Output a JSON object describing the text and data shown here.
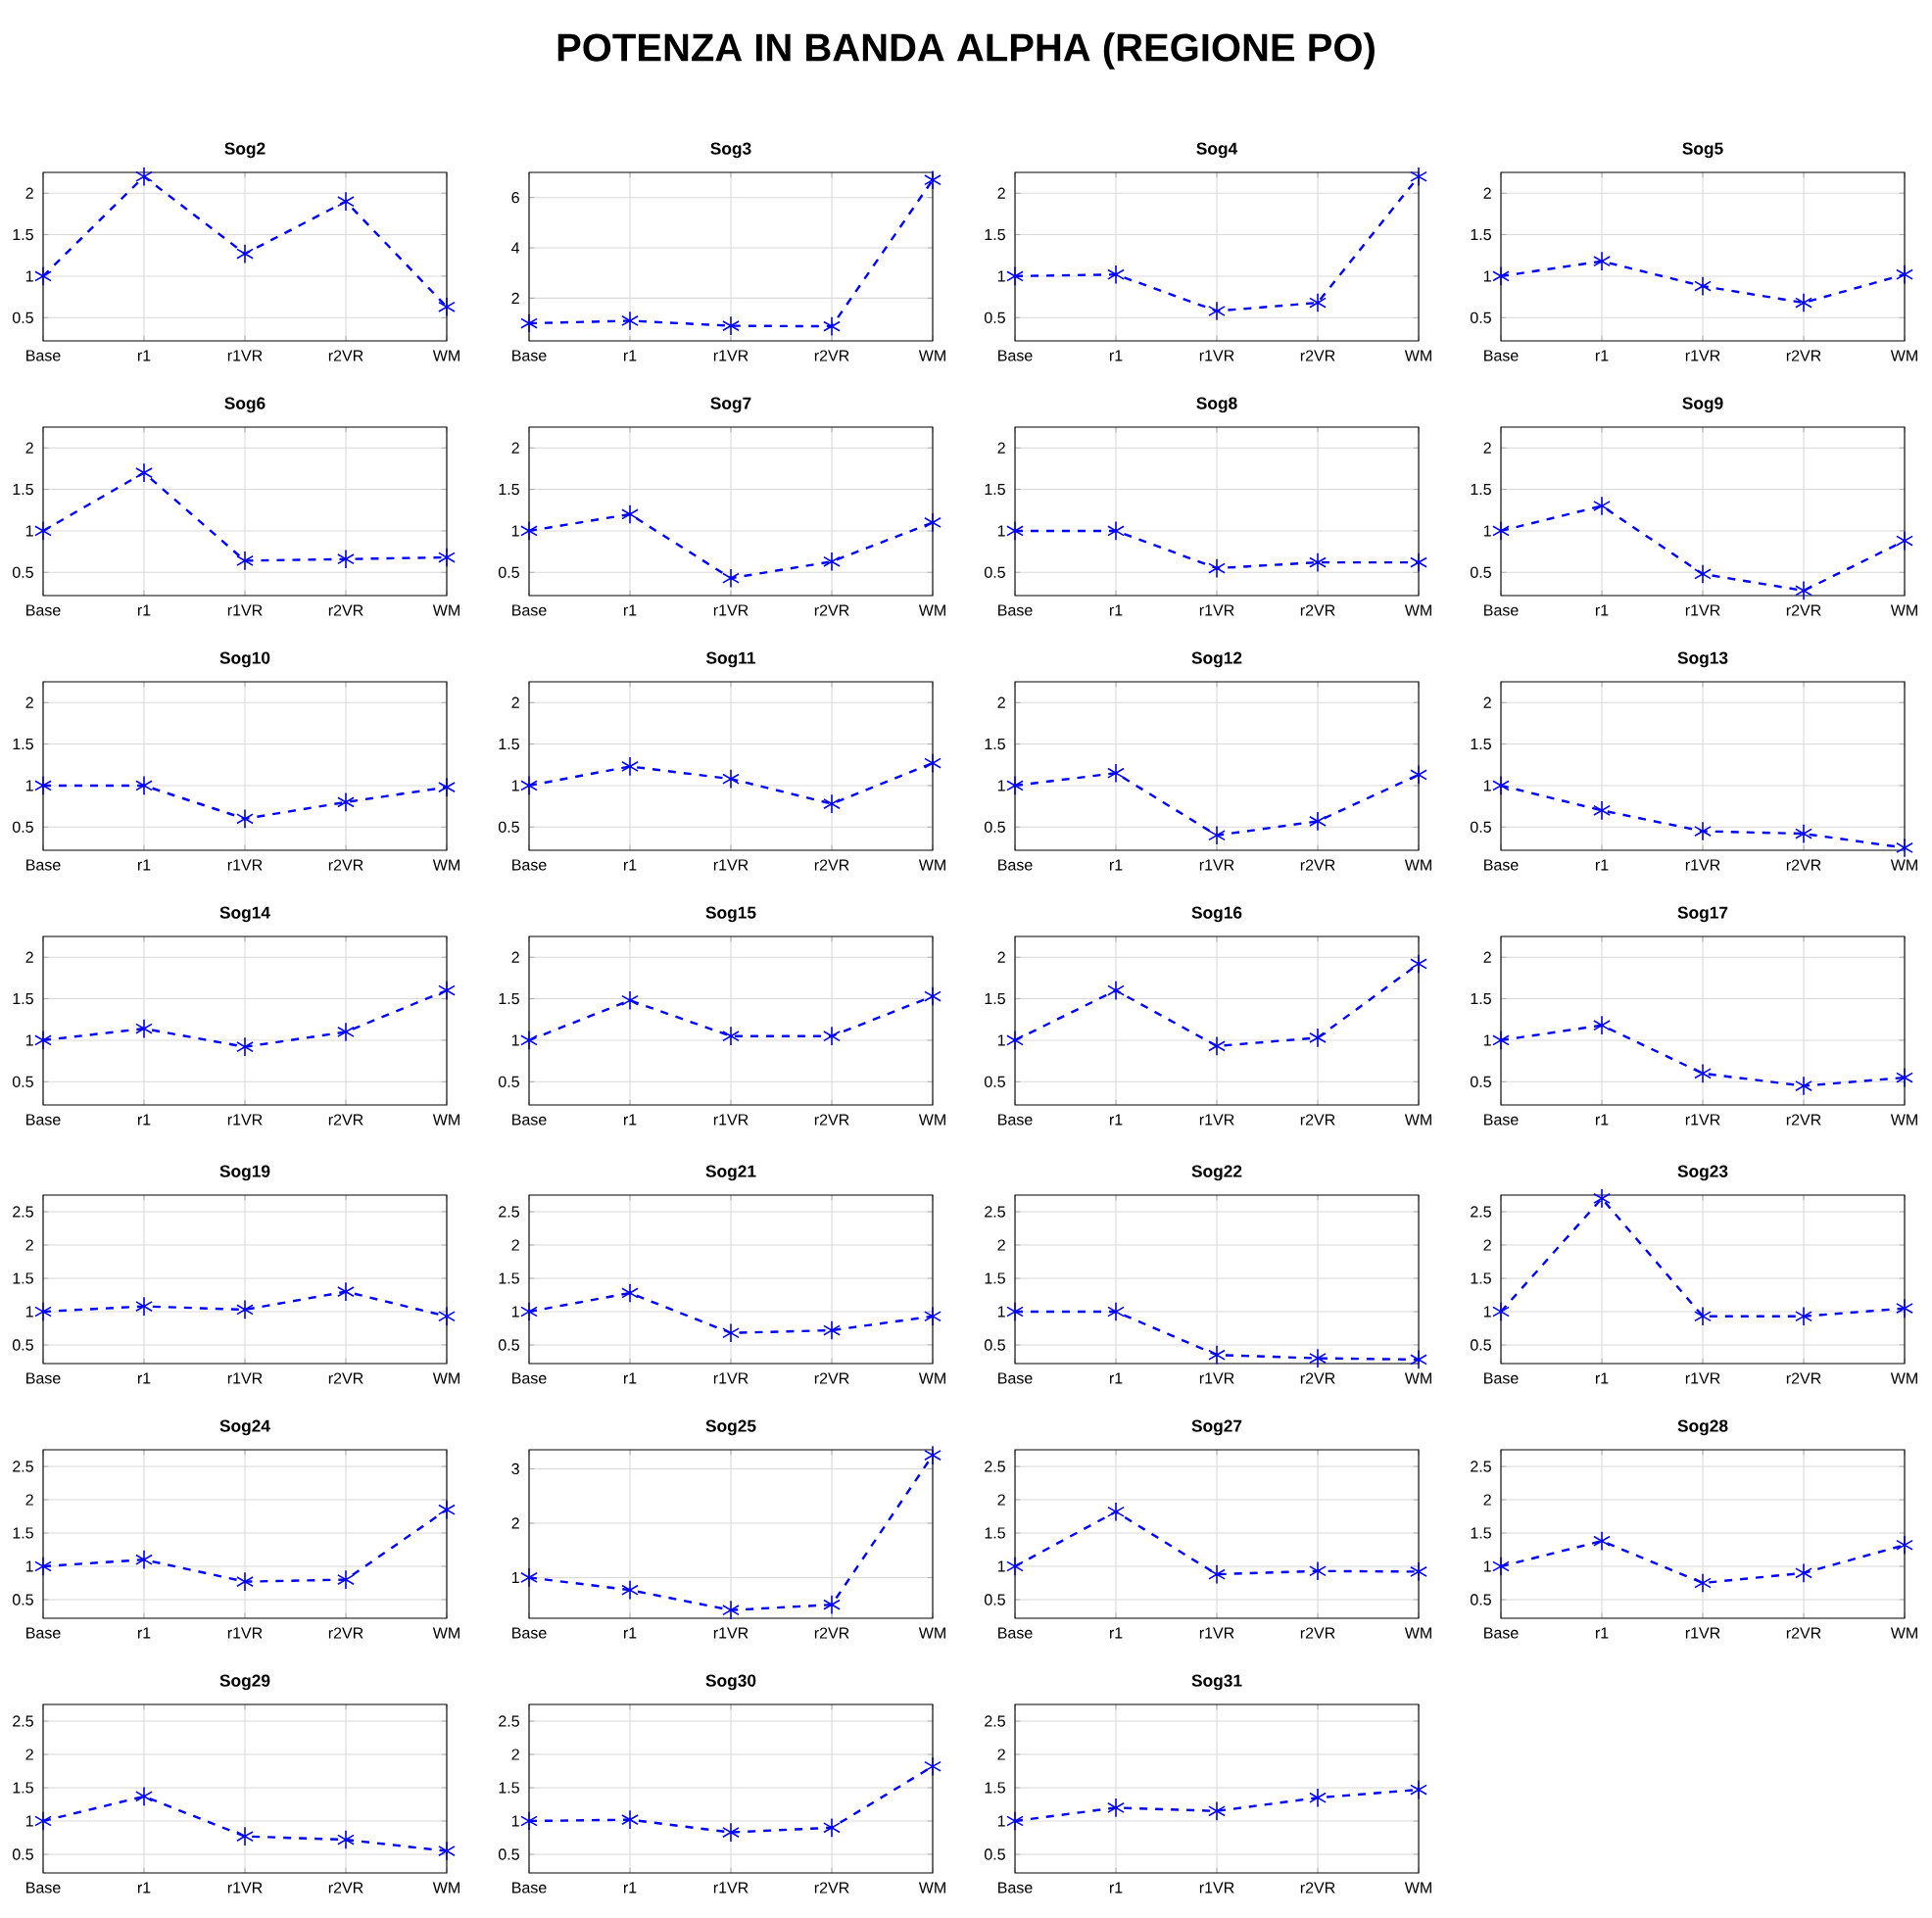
{
  "chart_data": [
    {
      "type": "line",
      "title": "Sog2",
      "annotations": [
        "POTENZA IN BANDA ALPHA (REGIONE PO)"
      ],
      "categories": [
        "Base",
        "r1",
        "r1VR",
        "r2VR",
        "WM"
      ],
      "series": [
        {
          "color": "#0000ff",
          "values": [
            1,
            2.2,
            1.27,
            1.9,
            0.63
          ]
        }
      ],
      "ylim": [
        0.22,
        2.25
      ],
      "yticks": [
        0.5,
        1,
        1.5,
        2
      ],
      "grid": true,
      "marker": "cross",
      "line_style": "dashed"
    },
    {
      "type": "line",
      "title": "Sog3",
      "categories": [
        "Base",
        "r1",
        "r1VR",
        "r2VR",
        "WM"
      ],
      "series": [
        {
          "color": "#0000ff",
          "values": [
            1,
            1.1,
            0.9,
            0.88,
            6.7
          ]
        }
      ],
      "ylim": [
        0.3,
        7
      ],
      "yticks": [
        2,
        4,
        6
      ],
      "grid": true,
      "marker": "cross",
      "line_style": "dashed"
    },
    {
      "type": "line",
      "title": "Sog4",
      "categories": [
        "Base",
        "r1",
        "r1VR",
        "r2VR",
        "WM"
      ],
      "series": [
        {
          "color": "#0000ff",
          "values": [
            1,
            1.02,
            0.58,
            0.68,
            2.2
          ]
        }
      ],
      "ylim": [
        0.22,
        2.25
      ],
      "yticks": [
        0.5,
        1,
        1.5,
        2
      ],
      "grid": true,
      "marker": "cross",
      "line_style": "dashed"
    },
    {
      "type": "line",
      "title": "Sog5",
      "categories": [
        "Base",
        "r1",
        "r1VR",
        "r2VR",
        "WM"
      ],
      "series": [
        {
          "color": "#0000ff",
          "values": [
            1,
            1.18,
            0.88,
            0.68,
            1.02
          ]
        }
      ],
      "ylim": [
        0.22,
        2.25
      ],
      "yticks": [
        0.5,
        1,
        1.5,
        2
      ],
      "grid": true,
      "marker": "cross",
      "line_style": "dashed"
    },
    {
      "type": "line",
      "title": "Sog6",
      "categories": [
        "Base",
        "r1",
        "r1VR",
        "r2VR",
        "WM"
      ],
      "series": [
        {
          "color": "#0000ff",
          "values": [
            1,
            1.7,
            0.64,
            0.66,
            0.68
          ]
        }
      ],
      "ylim": [
        0.22,
        2.25
      ],
      "yticks": [
        0.5,
        1,
        1.5,
        2
      ],
      "grid": true,
      "marker": "cross",
      "line_style": "dashed"
    },
    {
      "type": "line",
      "title": "Sog7",
      "categories": [
        "Base",
        "r1",
        "r1VR",
        "r2VR",
        "WM"
      ],
      "series": [
        {
          "color": "#0000ff",
          "values": [
            1,
            1.2,
            0.43,
            0.63,
            1.1
          ]
        }
      ],
      "ylim": [
        0.22,
        2.25
      ],
      "yticks": [
        0.5,
        1,
        1.5,
        2
      ],
      "grid": true,
      "marker": "cross",
      "line_style": "dashed"
    },
    {
      "type": "line",
      "title": "Sog8",
      "categories": [
        "Base",
        "r1",
        "r1VR",
        "r2VR",
        "WM"
      ],
      "series": [
        {
          "color": "#0000ff",
          "values": [
            1,
            1,
            0.55,
            0.62,
            0.62
          ]
        }
      ],
      "ylim": [
        0.22,
        2.25
      ],
      "yticks": [
        0.5,
        1,
        1.5,
        2
      ],
      "grid": true,
      "marker": "cross",
      "line_style": "dashed"
    },
    {
      "type": "line",
      "title": "Sog9",
      "categories": [
        "Base",
        "r1",
        "r1VR",
        "r2VR",
        "WM"
      ],
      "series": [
        {
          "color": "#0000ff",
          "values": [
            1,
            1.3,
            0.48,
            0.28,
            0.88
          ]
        }
      ],
      "ylim": [
        0.22,
        2.25
      ],
      "yticks": [
        0.5,
        1,
        1.5,
        2
      ],
      "grid": true,
      "marker": "cross",
      "line_style": "dashed"
    },
    {
      "type": "line",
      "title": "Sog10",
      "categories": [
        "Base",
        "r1",
        "r1VR",
        "r2VR",
        "WM"
      ],
      "series": [
        {
          "color": "#0000ff",
          "values": [
            1,
            1,
            0.6,
            0.8,
            0.98
          ]
        }
      ],
      "ylim": [
        0.22,
        2.25
      ],
      "yticks": [
        0.5,
        1,
        1.5,
        2
      ],
      "grid": true,
      "marker": "cross",
      "line_style": "dashed"
    },
    {
      "type": "line",
      "title": "Sog11",
      "categories": [
        "Base",
        "r1",
        "r1VR",
        "r2VR",
        "WM"
      ],
      "series": [
        {
          "color": "#0000ff",
          "values": [
            1,
            1.23,
            1.08,
            0.78,
            1.27
          ]
        }
      ],
      "ylim": [
        0.22,
        2.25
      ],
      "yticks": [
        0.5,
        1,
        1.5,
        2
      ],
      "grid": true,
      "marker": "cross",
      "line_style": "dashed"
    },
    {
      "type": "line",
      "title": "Sog12",
      "categories": [
        "Base",
        "r1",
        "r1VR",
        "r2VR",
        "WM"
      ],
      "series": [
        {
          "color": "#0000ff",
          "values": [
            1,
            1.15,
            0.4,
            0.57,
            1.13
          ]
        }
      ],
      "ylim": [
        0.22,
        2.25
      ],
      "yticks": [
        0.5,
        1,
        1.5,
        2
      ],
      "grid": true,
      "marker": "cross",
      "line_style": "dashed"
    },
    {
      "type": "line",
      "title": "Sog13",
      "categories": [
        "Base",
        "r1",
        "r1VR",
        "r2VR",
        "WM"
      ],
      "series": [
        {
          "color": "#0000ff",
          "values": [
            1,
            0.7,
            0.45,
            0.42,
            0.25
          ]
        }
      ],
      "ylim": [
        0.22,
        2.25
      ],
      "yticks": [
        0.5,
        1,
        1.5,
        2
      ],
      "grid": true,
      "marker": "cross",
      "line_style": "dashed"
    },
    {
      "type": "line",
      "title": "Sog14",
      "categories": [
        "Base",
        "r1",
        "r1VR",
        "r2VR",
        "WM"
      ],
      "series": [
        {
          "color": "#0000ff",
          "values": [
            1,
            1.14,
            0.92,
            1.1,
            1.6
          ]
        }
      ],
      "ylim": [
        0.22,
        2.25
      ],
      "yticks": [
        0.5,
        1,
        1.5,
        2
      ],
      "grid": true,
      "marker": "cross",
      "line_style": "dashed"
    },
    {
      "type": "line",
      "title": "Sog15",
      "categories": [
        "Base",
        "r1",
        "r1VR",
        "r2VR",
        "WM"
      ],
      "series": [
        {
          "color": "#0000ff",
          "values": [
            1,
            1.48,
            1.05,
            1.05,
            1.53
          ]
        }
      ],
      "ylim": [
        0.22,
        2.25
      ],
      "yticks": [
        0.5,
        1,
        1.5,
        2
      ],
      "grid": true,
      "marker": "cross",
      "line_style": "dashed"
    },
    {
      "type": "line",
      "title": "Sog16",
      "categories": [
        "Base",
        "r1",
        "r1VR",
        "r2VR",
        "WM"
      ],
      "series": [
        {
          "color": "#0000ff",
          "values": [
            1,
            1.6,
            0.93,
            1.03,
            1.92
          ]
        }
      ],
      "ylim": [
        0.22,
        2.25
      ],
      "yticks": [
        0.5,
        1,
        1.5,
        2
      ],
      "grid": true,
      "marker": "cross",
      "line_style": "dashed"
    },
    {
      "type": "line",
      "title": "Sog17",
      "categories": [
        "Base",
        "r1",
        "r1VR",
        "r2VR",
        "WM"
      ],
      "series": [
        {
          "color": "#0000ff",
          "values": [
            1,
            1.18,
            0.6,
            0.45,
            0.55
          ]
        }
      ],
      "ylim": [
        0.22,
        2.25
      ],
      "yticks": [
        0.5,
        1,
        1.5,
        2
      ],
      "grid": true,
      "marker": "cross",
      "line_style": "dashed"
    },
    {
      "type": "line",
      "title": "Sog19",
      "categories": [
        "Base",
        "r1",
        "r1VR",
        "r2VR",
        "WM"
      ],
      "series": [
        {
          "color": "#0000ff",
          "values": [
            1,
            1.08,
            1.03,
            1.3,
            0.93
          ]
        }
      ],
      "ylim": [
        0.22,
        2.75
      ],
      "yticks": [
        0.5,
        1,
        1.5,
        2,
        2.5
      ],
      "grid": true,
      "marker": "cross",
      "line_style": "dashed"
    },
    {
      "type": "line",
      "title": "Sog21",
      "categories": [
        "Base",
        "r1",
        "r1VR",
        "r2VR",
        "WM"
      ],
      "series": [
        {
          "color": "#0000ff",
          "values": [
            1,
            1.28,
            0.68,
            0.72,
            0.93
          ]
        }
      ],
      "ylim": [
        0.22,
        2.75
      ],
      "yticks": [
        0.5,
        1,
        1.5,
        2,
        2.5
      ],
      "grid": true,
      "marker": "cross",
      "line_style": "dashed"
    },
    {
      "type": "line",
      "title": "Sog22",
      "categories": [
        "Base",
        "r1",
        "r1VR",
        "r2VR",
        "WM"
      ],
      "series": [
        {
          "color": "#0000ff",
          "values": [
            1,
            1,
            0.35,
            0.3,
            0.28
          ]
        }
      ],
      "ylim": [
        0.22,
        2.75
      ],
      "yticks": [
        0.5,
        1,
        1.5,
        2,
        2.5
      ],
      "grid": true,
      "marker": "cross",
      "line_style": "dashed"
    },
    {
      "type": "line",
      "title": "Sog23",
      "categories": [
        "Base",
        "r1",
        "r1VR",
        "r2VR",
        "WM"
      ],
      "series": [
        {
          "color": "#0000ff",
          "values": [
            1,
            2.7,
            0.93,
            0.93,
            1.05
          ]
        }
      ],
      "ylim": [
        0.22,
        2.75
      ],
      "yticks": [
        0.5,
        1,
        1.5,
        2,
        2.5
      ],
      "grid": true,
      "marker": "cross",
      "line_style": "dashed"
    },
    {
      "type": "line",
      "title": "Sog24",
      "categories": [
        "Base",
        "r1",
        "r1VR",
        "r2VR",
        "WM"
      ],
      "series": [
        {
          "color": "#0000ff",
          "values": [
            1,
            1.1,
            0.77,
            0.8,
            1.85
          ]
        }
      ],
      "ylim": [
        0.22,
        2.75
      ],
      "yticks": [
        0.5,
        1,
        1.5,
        2,
        2.5
      ],
      "grid": true,
      "marker": "cross",
      "line_style": "dashed"
    },
    {
      "type": "line",
      "title": "Sog25",
      "categories": [
        "Base",
        "r1",
        "r1VR",
        "r2VR",
        "WM"
      ],
      "series": [
        {
          "color": "#0000ff",
          "values": [
            1,
            0.77,
            0.4,
            0.5,
            3.25
          ]
        }
      ],
      "ylim": [
        0.25,
        3.35
      ],
      "yticks": [
        1,
        2,
        3
      ],
      "grid": true,
      "marker": "cross",
      "line_style": "dashed"
    },
    {
      "type": "line",
      "title": "Sog27",
      "categories": [
        "Base",
        "r1",
        "r1VR",
        "r2VR",
        "WM"
      ],
      "series": [
        {
          "color": "#0000ff",
          "values": [
            1,
            1.82,
            0.88,
            0.93,
            0.92
          ]
        }
      ],
      "ylim": [
        0.22,
        2.75
      ],
      "yticks": [
        0.5,
        1,
        1.5,
        2,
        2.5
      ],
      "grid": true,
      "marker": "cross",
      "line_style": "dashed"
    },
    {
      "type": "line",
      "title": "Sog28",
      "categories": [
        "Base",
        "r1",
        "r1VR",
        "r2VR",
        "WM"
      ],
      "series": [
        {
          "color": "#0000ff",
          "values": [
            1,
            1.38,
            0.75,
            0.9,
            1.32
          ]
        }
      ],
      "ylim": [
        0.22,
        2.75
      ],
      "yticks": [
        0.5,
        1,
        1.5,
        2,
        2.5
      ],
      "grid": true,
      "marker": "cross",
      "line_style": "dashed"
    },
    {
      "type": "line",
      "title": "Sog29",
      "categories": [
        "Base",
        "r1",
        "r1VR",
        "r2VR",
        "WM"
      ],
      "series": [
        {
          "color": "#0000ff",
          "values": [
            1,
            1.37,
            0.77,
            0.72,
            0.55
          ]
        }
      ],
      "ylim": [
        0.22,
        2.75
      ],
      "yticks": [
        0.5,
        1,
        1.5,
        2,
        2.5
      ],
      "grid": true,
      "marker": "cross",
      "line_style": "dashed"
    },
    {
      "type": "line",
      "title": "Sog30",
      "categories": [
        "Base",
        "r1",
        "r1VR",
        "r2VR",
        "WM"
      ],
      "series": [
        {
          "color": "#0000ff",
          "values": [
            1,
            1.02,
            0.83,
            0.9,
            1.82
          ]
        }
      ],
      "ylim": [
        0.22,
        2.75
      ],
      "yticks": [
        0.5,
        1,
        1.5,
        2,
        2.5
      ],
      "grid": true,
      "marker": "cross",
      "line_style": "dashed"
    },
    {
      "type": "line",
      "title": "Sog31",
      "categories": [
        "Base",
        "r1",
        "r1VR",
        "r2VR",
        "WM"
      ],
      "series": [
        {
          "color": "#0000ff",
          "values": [
            1,
            1.2,
            1.15,
            1.35,
            1.47
          ]
        }
      ],
      "ylim": [
        0.22,
        2.75
      ],
      "yticks": [
        0.5,
        1,
        1.5,
        2,
        2.5
      ],
      "grid": true,
      "marker": "cross",
      "line_style": "dashed"
    }
  ]
}
